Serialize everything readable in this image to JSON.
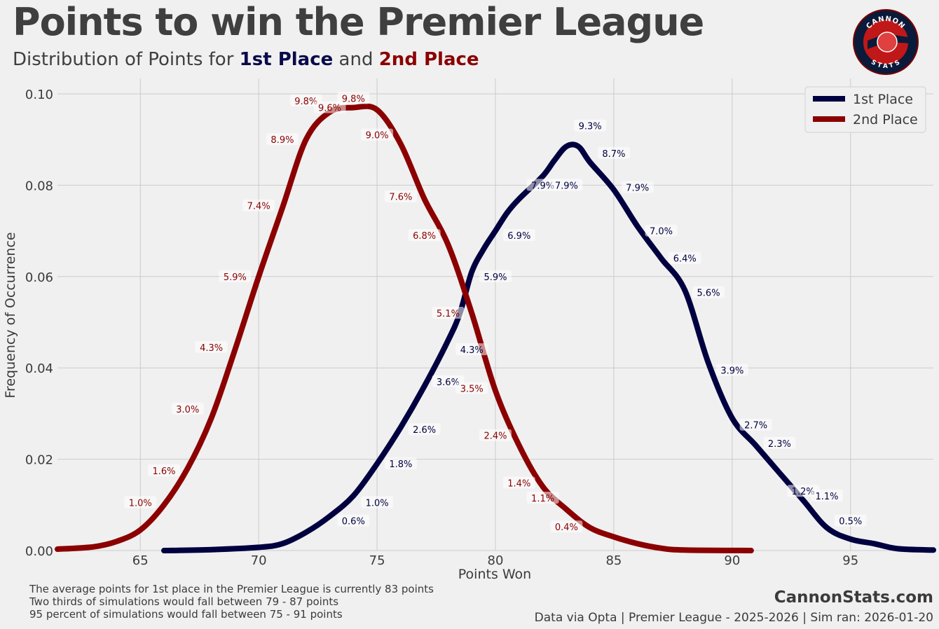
{
  "header": {
    "title": "Points to win the Premier League",
    "subtitle_prefix": "Distribution of Points for",
    "subtitle_first": "1st Place",
    "subtitle_and": "and",
    "subtitle_second": "2nd Place"
  },
  "logo": {
    "top_text": "CANNON",
    "bottom_text": "STATS",
    "icon": "cannon-stats-logo"
  },
  "notes": {
    "line1": "The average points for 1st place in the Premier League is currently 83 points",
    "line2": "Two thirds of simulations would fall between 79 - 87 points",
    "line3": "95 percent of simulations would fall between 75 - 91 points"
  },
  "footer": {
    "brand": "CannonStats.com",
    "credit": "Data via Opta | Premier League - 2025-2026 | Sim ran: 2026-01-20"
  },
  "colors": {
    "first": "#000040",
    "second": "#8b0000",
    "background": "#f0f0f0",
    "grid": "#cbcbcb"
  },
  "chart_data": {
    "type": "line",
    "xlabel": "Points Won",
    "ylabel": "Frequency of Occurrence",
    "xlim": [
      61.5,
      98.5
    ],
    "ylim": [
      0,
      0.1
    ],
    "xticks": [
      65,
      70,
      75,
      80,
      85,
      90,
      95
    ],
    "yticks": [
      0.0,
      0.02,
      0.04,
      0.06,
      0.08,
      0.1
    ],
    "ytick_labels": [
      "0.00",
      "0.02",
      "0.04",
      "0.06",
      "0.08",
      "0.10"
    ],
    "grid": true,
    "legend": "top-right",
    "series": [
      {
        "name": "1st Place",
        "color": "#000040",
        "curve": [
          [
            66,
            0
          ],
          [
            68,
            0.0002
          ],
          [
            70,
            0.0007
          ],
          [
            71,
            0.0015
          ],
          [
            72,
            0.004
          ],
          [
            73,
            0.0075
          ],
          [
            74,
            0.012
          ],
          [
            75,
            0.019
          ],
          [
            76,
            0.027
          ],
          [
            77,
            0.036
          ],
          [
            78,
            0.046
          ],
          [
            78.5,
            0.052
          ],
          [
            79,
            0.061
          ],
          [
            79.5,
            0.066
          ],
          [
            80,
            0.07
          ],
          [
            80.5,
            0.074
          ],
          [
            81,
            0.077
          ],
          [
            82,
            0.082
          ],
          [
            82.5,
            0.0855
          ],
          [
            83,
            0.0885
          ],
          [
            83.5,
            0.0885
          ],
          [
            84,
            0.085
          ],
          [
            85,
            0.079
          ],
          [
            86,
            0.071
          ],
          [
            87,
            0.064
          ],
          [
            88,
            0.057
          ],
          [
            89,
            0.041
          ],
          [
            90,
            0.029
          ],
          [
            91,
            0.023
          ],
          [
            92,
            0.017
          ],
          [
            93,
            0.011
          ],
          [
            94,
            0.005
          ],
          [
            95,
            0.0025
          ],
          [
            96,
            0.0015
          ],
          [
            97,
            0.0004
          ],
          [
            98.5,
            0.0001
          ]
        ],
        "labels": [
          {
            "x": 74,
            "y": 0.0065,
            "text": "0.6%"
          },
          {
            "x": 75,
            "y": 0.0105,
            "text": "1.0%"
          },
          {
            "x": 76,
            "y": 0.019,
            "text": "1.8%"
          },
          {
            "x": 77,
            "y": 0.0265,
            "text": "2.6%"
          },
          {
            "x": 78,
            "y": 0.037,
            "text": "3.6%"
          },
          {
            "x": 79,
            "y": 0.044,
            "text": "4.3%"
          },
          {
            "x": 80,
            "y": 0.06,
            "text": "5.9%"
          },
          {
            "x": 81,
            "y": 0.069,
            "text": "6.9%"
          },
          {
            "x": 82,
            "y": 0.08,
            "text": "7.9%"
          },
          {
            "x": 83,
            "y": 0.08,
            "text": "7.9%"
          },
          {
            "x": 84,
            "y": 0.093,
            "text": "9.3%"
          },
          {
            "x": 85,
            "y": 0.087,
            "text": "8.7%"
          },
          {
            "x": 86,
            "y": 0.0795,
            "text": "7.9%"
          },
          {
            "x": 87,
            "y": 0.07,
            "text": "7.0%"
          },
          {
            "x": 88,
            "y": 0.064,
            "text": "6.4%"
          },
          {
            "x": 89,
            "y": 0.0565,
            "text": "5.6%"
          },
          {
            "x": 90,
            "y": 0.0395,
            "text": "3.9%"
          },
          {
            "x": 91,
            "y": 0.0275,
            "text": "2.7%"
          },
          {
            "x": 92,
            "y": 0.0235,
            "text": "2.3%"
          },
          {
            "x": 93,
            "y": 0.013,
            "text": "1.2%"
          },
          {
            "x": 94,
            "y": 0.012,
            "text": "1.1%"
          },
          {
            "x": 95,
            "y": 0.0065,
            "text": "0.5%"
          }
        ]
      },
      {
        "name": "2nd Place",
        "color": "#8b0000",
        "curve": [
          [
            61.5,
            0.0003
          ],
          [
            63,
            0.0008
          ],
          [
            64,
            0.002
          ],
          [
            65,
            0.0045
          ],
          [
            66,
            0.01
          ],
          [
            67,
            0.018
          ],
          [
            68,
            0.029
          ],
          [
            69,
            0.044
          ],
          [
            70,
            0.06
          ],
          [
            71,
            0.075
          ],
          [
            72,
            0.09
          ],
          [
            73,
            0.096
          ],
          [
            74,
            0.097
          ],
          [
            75,
            0.0965
          ],
          [
            76,
            0.089
          ],
          [
            77,
            0.077
          ],
          [
            78,
            0.067
          ],
          [
            79,
            0.052
          ],
          [
            80,
            0.035
          ],
          [
            81,
            0.023
          ],
          [
            82,
            0.014
          ],
          [
            83,
            0.009
          ],
          [
            84,
            0.005
          ],
          [
            85,
            0.003
          ],
          [
            86,
            0.0015
          ],
          [
            87,
            0.0005
          ],
          [
            88,
            0.0001
          ],
          [
            90.8,
            0
          ]
        ],
        "labels": [
          {
            "x": 65,
            "y": 0.0105,
            "text": "1.0%"
          },
          {
            "x": 66,
            "y": 0.0175,
            "text": "1.6%"
          },
          {
            "x": 67,
            "y": 0.031,
            "text": "3.0%"
          },
          {
            "x": 68,
            "y": 0.0445,
            "text": "4.3%"
          },
          {
            "x": 69,
            "y": 0.06,
            "text": "5.9%"
          },
          {
            "x": 70,
            "y": 0.0755,
            "text": "7.4%"
          },
          {
            "x": 71,
            "y": 0.09,
            "text": "8.9%"
          },
          {
            "x": 72,
            "y": 0.0985,
            "text": "9.8%"
          },
          {
            "x": 73,
            "y": 0.097,
            "text": "9.6%"
          },
          {
            "x": 74,
            "y": 0.099,
            "text": "9.8%"
          },
          {
            "x": 75,
            "y": 0.091,
            "text": "9.0%"
          },
          {
            "x": 76,
            "y": 0.0775,
            "text": "7.6%"
          },
          {
            "x": 77,
            "y": 0.069,
            "text": "6.8%"
          },
          {
            "x": 78,
            "y": 0.052,
            "text": "5.1%"
          },
          {
            "x": 79,
            "y": 0.0355,
            "text": "3.5%"
          },
          {
            "x": 80,
            "y": 0.0252,
            "text": "2.4%"
          },
          {
            "x": 81,
            "y": 0.0148,
            "text": "1.4%"
          },
          {
            "x": 82,
            "y": 0.0115,
            "text": "1.1%"
          },
          {
            "x": 83,
            "y": 0.0052,
            "text": "0.4%"
          }
        ]
      }
    ]
  }
}
